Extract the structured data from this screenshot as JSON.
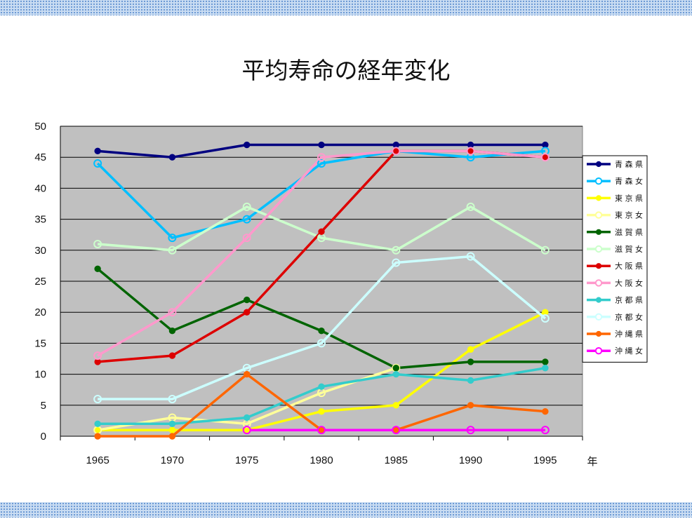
{
  "slide": {
    "title": "平均寿命の経年変化"
  },
  "chart_data": {
    "type": "line",
    "title": "平均寿命の経年変化",
    "xlabel": "年",
    "ylabel": "",
    "x": [
      "1965",
      "1970",
      "1975",
      "1980",
      "1985",
      "1990",
      "1995"
    ],
    "ylim": [
      0,
      50
    ],
    "yticks": [
      0,
      5,
      10,
      15,
      20,
      25,
      30,
      35,
      40,
      45,
      50
    ],
    "grid": true,
    "legend_position": "right",
    "plot_background": "#c0c0c0",
    "series": [
      {
        "name": "青 森 県",
        "color": "#000080",
        "marker": "filled",
        "values": [
          46,
          45,
          47,
          47,
          47,
          47,
          47
        ]
      },
      {
        "name": "青 森 女",
        "color": "#00bfff",
        "marker": "open",
        "values": [
          44,
          32,
          35,
          44,
          46,
          45,
          46
        ]
      },
      {
        "name": "東 京 県",
        "color": "#ffff00",
        "marker": "filled",
        "values": [
          1,
          1,
          1,
          4,
          5,
          14,
          20
        ]
      },
      {
        "name": "東 京 女",
        "color": "#ffff99",
        "marker": "open",
        "values": [
          1,
          3,
          2,
          7,
          11,
          null,
          null
        ]
      },
      {
        "name": "滋 賀 県",
        "color": "#006400",
        "marker": "filled",
        "values": [
          27,
          17,
          22,
          17,
          11,
          12,
          12
        ]
      },
      {
        "name": "滋 賀 女",
        "color": "#ccffcc",
        "marker": "open",
        "values": [
          31,
          30,
          37,
          32,
          30,
          37,
          30
        ]
      },
      {
        "name": "大 阪 県",
        "color": "#dd0000",
        "marker": "filled",
        "values": [
          12,
          13,
          20,
          33,
          46,
          46,
          45
        ]
      },
      {
        "name": "大 阪 女",
        "color": "#ff99cc",
        "marker": "open",
        "values": [
          13,
          20,
          32,
          45,
          46,
          46,
          45
        ]
      },
      {
        "name": "京 都 県",
        "color": "#33cccc",
        "marker": "filled",
        "values": [
          2,
          2,
          3,
          8,
          10,
          9,
          11
        ]
      },
      {
        "name": "京 都 女",
        "color": "#ccffff",
        "marker": "open",
        "values": [
          6,
          6,
          11,
          15,
          28,
          29,
          19
        ]
      },
      {
        "name": "沖 縄 県",
        "color": "#ff6600",
        "marker": "filled",
        "values": [
          0,
          0,
          10,
          1,
          1,
          5,
          4
        ]
      },
      {
        "name": "沖 縄 女",
        "color": "#ff00ff",
        "marker": "open",
        "values": [
          null,
          null,
          1,
          1,
          1,
          1,
          1
        ]
      }
    ]
  }
}
